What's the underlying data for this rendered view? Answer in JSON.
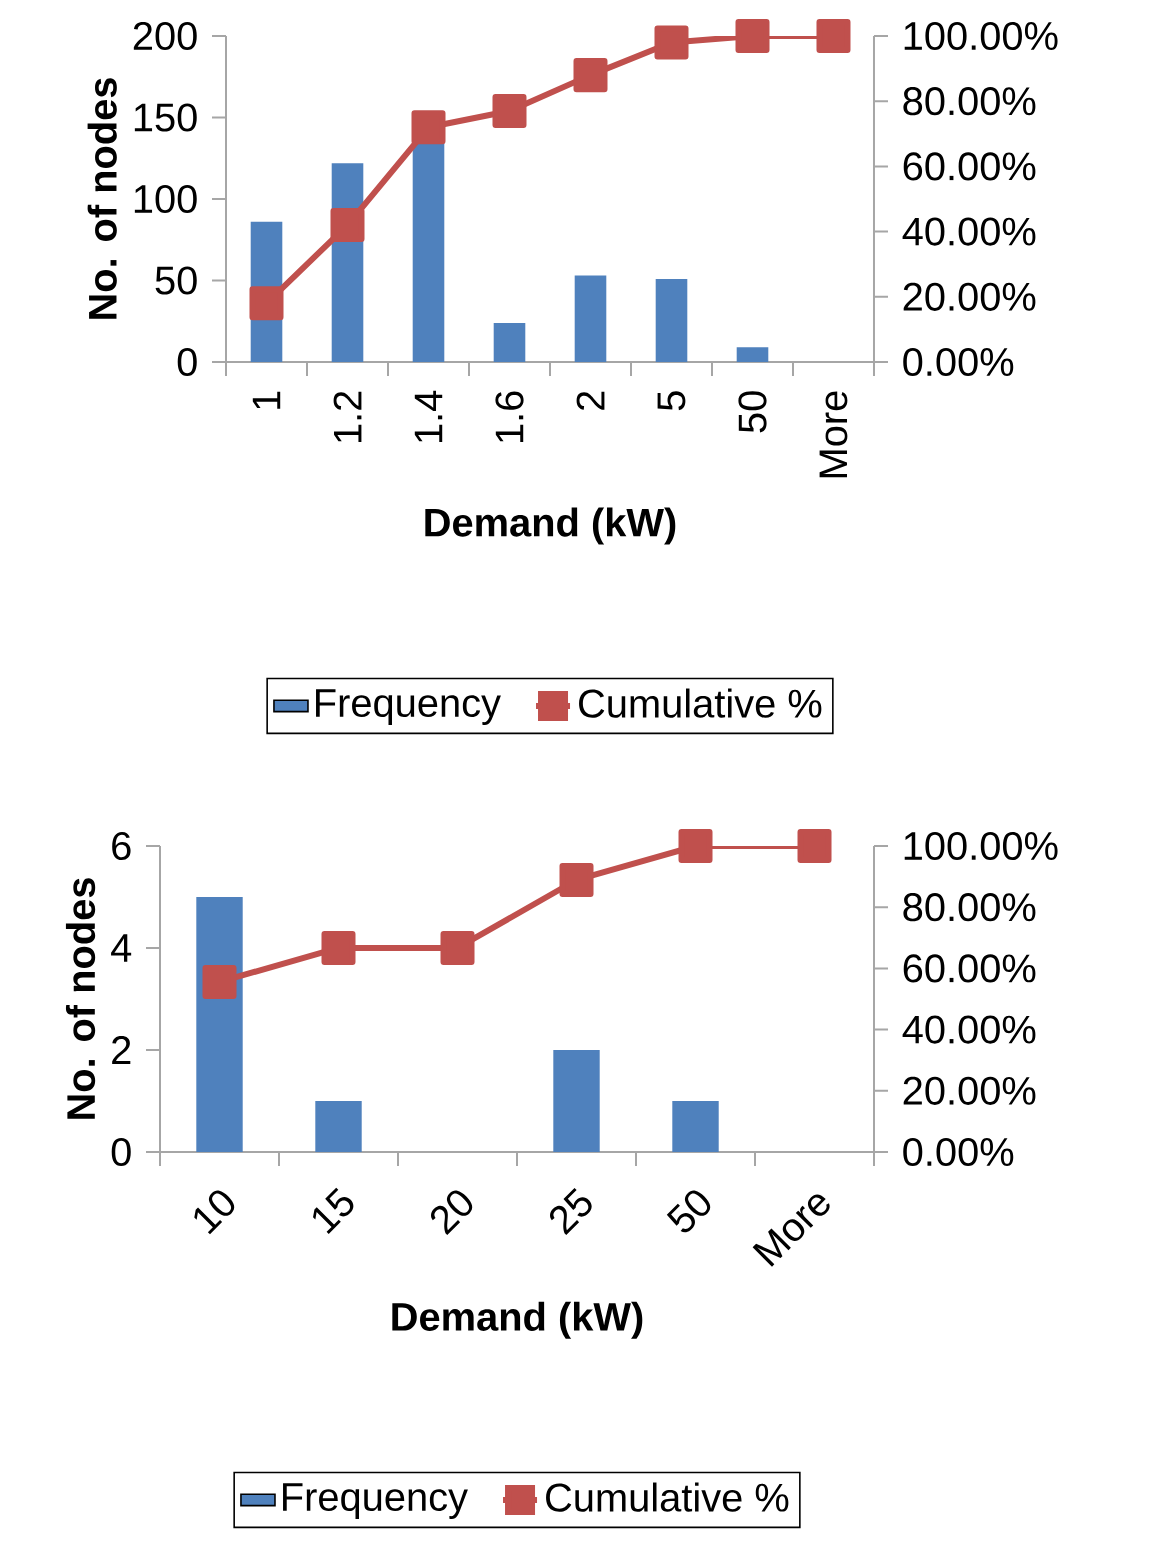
{
  "chart_data": [
    {
      "type": "bar",
      "xlabel": "Demand (kW)",
      "ylabel": "No. of nodes",
      "categories": [
        "1",
        "1.2",
        "1.4",
        "1.6",
        "2",
        "5",
        "50",
        "More"
      ],
      "series": [
        {
          "name": "Frequency",
          "color": "#4f81bd",
          "values": [
            86,
            122,
            137,
            24,
            53,
            51,
            9,
            0
          ]
        },
        {
          "name": "Cumulative %",
          "type": "line",
          "axis": "y2",
          "color": "#c0504d",
          "values": [
            18,
            42,
            72,
            77,
            88,
            98,
            100,
            100
          ]
        }
      ],
      "ylim": [
        0,
        200
      ],
      "yticks": [
        0,
        50,
        100,
        150,
        200
      ],
      "y2lim": [
        0,
        100
      ],
      "y2ticks": [
        {
          "value": 0,
          "label": "0.00%"
        },
        {
          "value": 20,
          "label": "20.00%"
        },
        {
          "value": 40,
          "label": "40.00%"
        },
        {
          "value": 60,
          "label": "60.00%"
        },
        {
          "value": 80,
          "label": "80.00%"
        },
        {
          "value": 100,
          "label": "100.00%"
        }
      ],
      "marker": "square",
      "legend": "bottom",
      "grid": false
    },
    {
      "type": "bar",
      "xlabel": "Demand (kW)",
      "ylabel": "No. of nodes",
      "categories": [
        "10",
        "15",
        "20",
        "25",
        "50",
        "More"
      ],
      "series": [
        {
          "name": "Frequency",
          "color": "#4f81bd",
          "values": [
            5,
            1,
            0,
            2,
            1,
            0
          ]
        },
        {
          "name": "Cumulative %",
          "type": "line",
          "axis": "y2",
          "color": "#c0504d",
          "values": [
            55.6,
            66.7,
            66.7,
            88.9,
            100,
            100
          ]
        }
      ],
      "ylim": [
        0,
        6
      ],
      "yticks": [
        0,
        2,
        4,
        6
      ],
      "y2lim": [
        0,
        100
      ],
      "y2ticks": [
        {
          "value": 0,
          "label": "0.00%"
        },
        {
          "value": 20,
          "label": "20.00%"
        },
        {
          "value": 40,
          "label": "40.00%"
        },
        {
          "value": 60,
          "label": "60.00%"
        },
        {
          "value": 80,
          "label": "80.00%"
        },
        {
          "value": 100,
          "label": "100.00%"
        }
      ],
      "marker": "square",
      "legend": "bottom",
      "grid": false
    }
  ]
}
